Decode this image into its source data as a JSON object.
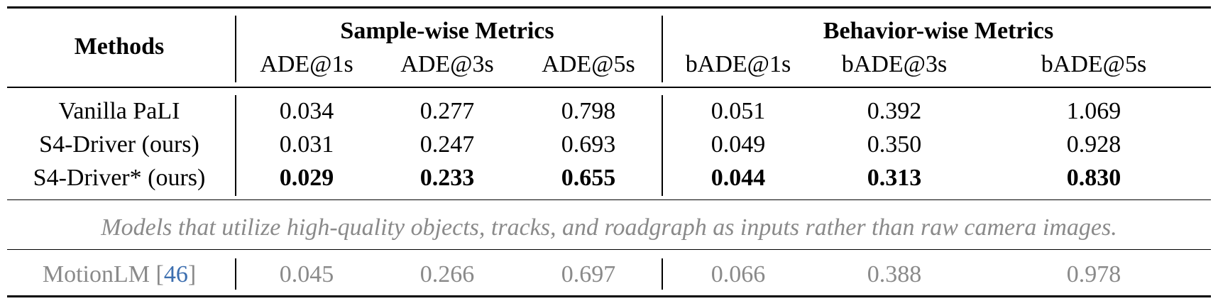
{
  "table": {
    "header": {
      "methods": "Methods",
      "groups": [
        "Sample-wise Metrics",
        "Behavior-wise Metrics"
      ],
      "columns": [
        "ADE@1s",
        "ADE@3s",
        "ADE@5s",
        "bADE@1s",
        "bADE@3s",
        "bADE@5s"
      ]
    },
    "rows": [
      {
        "method": "Vanilla PaLI",
        "values": [
          "0.034",
          "0.277",
          "0.798",
          "0.051",
          "0.392",
          "1.069"
        ],
        "bold": false
      },
      {
        "method": "S4-Driver (ours)",
        "values": [
          "0.031",
          "0.247",
          "0.693",
          "0.049",
          "0.350",
          "0.928"
        ],
        "bold": false
      },
      {
        "method": "S4-Driver* (ours)",
        "values": [
          "0.029",
          "0.233",
          "0.655",
          "0.044",
          "0.313",
          "0.830"
        ],
        "bold": true
      }
    ],
    "note": "Models that utilize high-quality objects, tracks, and roadgraph as inputs rather than raw camera images.",
    "reference_rows": [
      {
        "label_parts": [
          "MotionLM [",
          "46",
          "]"
        ],
        "values": [
          "0.045",
          "0.266",
          "0.697",
          "0.066",
          "0.388",
          "0.978"
        ]
      }
    ]
  }
}
